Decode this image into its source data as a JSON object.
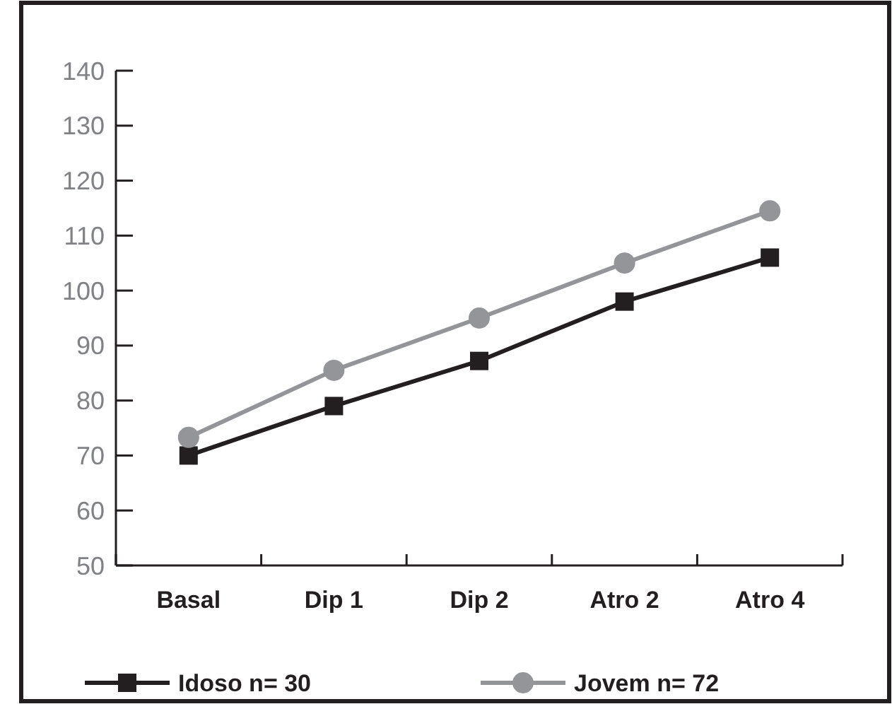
{
  "chart_data": {
    "type": "line",
    "categories": [
      "Basal",
      "Dip 1",
      "Dip 2",
      "Atro 2",
      "Atro 4"
    ],
    "series": [
      {
        "name": "Idoso n= 30",
        "color": "#231f20",
        "marker": "square",
        "values": [
          70,
          79,
          87.2,
          98,
          106
        ]
      },
      {
        "name": "Jovem n= 72",
        "color": "#939598",
        "marker": "circle",
        "values": [
          73.3,
          85.5,
          95,
          105,
          114.5
        ]
      }
    ],
    "ylim": [
      50,
      140
    ],
    "yticks": [
      50,
      60,
      70,
      80,
      90,
      100,
      110,
      120,
      130,
      140
    ],
    "grid": false,
    "legend": "bottom"
  }
}
